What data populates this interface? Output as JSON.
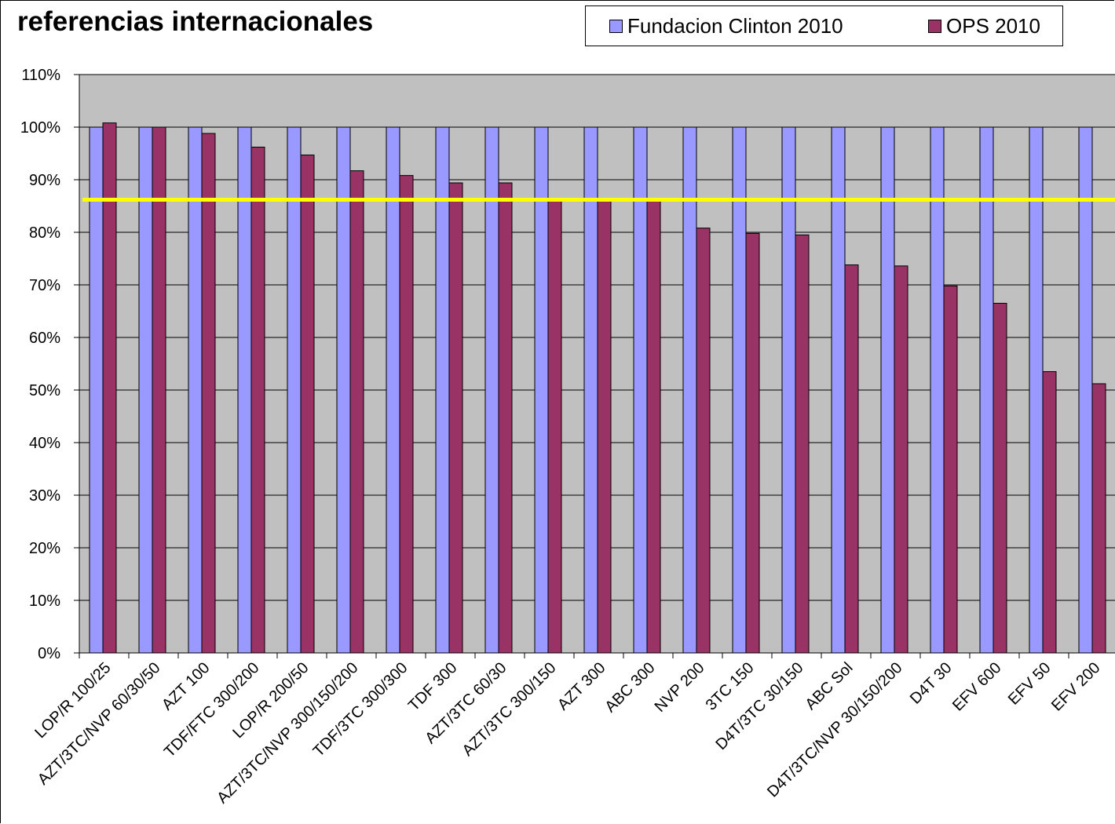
{
  "chart_data": {
    "type": "bar",
    "title": "referencias internacionales",
    "xlabel": "",
    "ylabel": "",
    "ylim": [
      0,
      1.1
    ],
    "yticks": [
      "0%",
      "10%",
      "20%",
      "30%",
      "40%",
      "50%",
      "60%",
      "70%",
      "80%",
      "90%",
      "100%",
      "110%"
    ],
    "categories": [
      "LOP/R 100/25",
      "AZT/3TC/NVP 60/30/50",
      "AZT 100",
      "TDF/FTC 300/200",
      "LOP/R 200/50",
      "AZT/3TC/NVP 300/150/200",
      "TDF/3TC 300/300",
      "TDF 300",
      "AZT/3TC 60/30",
      "AZT/3TC 300/150",
      "AZT 300",
      "ABC 300",
      "NVP 200",
      "3TC 150",
      "D4T/3TC 30/150",
      "ABC Sol",
      "D4T/3TC/NVP 30/150/200",
      "D4T 30",
      "EFV 600",
      "EFV 50",
      "EFV 200"
    ],
    "series": [
      {
        "name": "Fundacion Clinton 2010",
        "color": "#9999ff",
        "values": [
          1,
          1,
          1,
          1,
          1,
          1,
          1,
          1,
          1,
          1,
          1,
          1,
          1,
          1,
          1,
          1,
          1,
          1,
          1,
          1,
          1
        ]
      },
      {
        "name": "OPS 2010",
        "color": "#993366",
        "values": [
          1.008,
          1.0,
          0.988,
          0.962,
          0.947,
          0.917,
          0.908,
          0.894,
          0.894,
          0.86,
          0.86,
          0.86,
          0.808,
          0.798,
          0.795,
          0.738,
          0.736,
          0.698,
          0.665,
          0.535,
          0.512
        ]
      }
    ],
    "reference_line": {
      "value": 0.862,
      "color": "#ffff00"
    },
    "plot_background": "#c0c0c0",
    "grid": true,
    "legend_position": "top-right"
  }
}
